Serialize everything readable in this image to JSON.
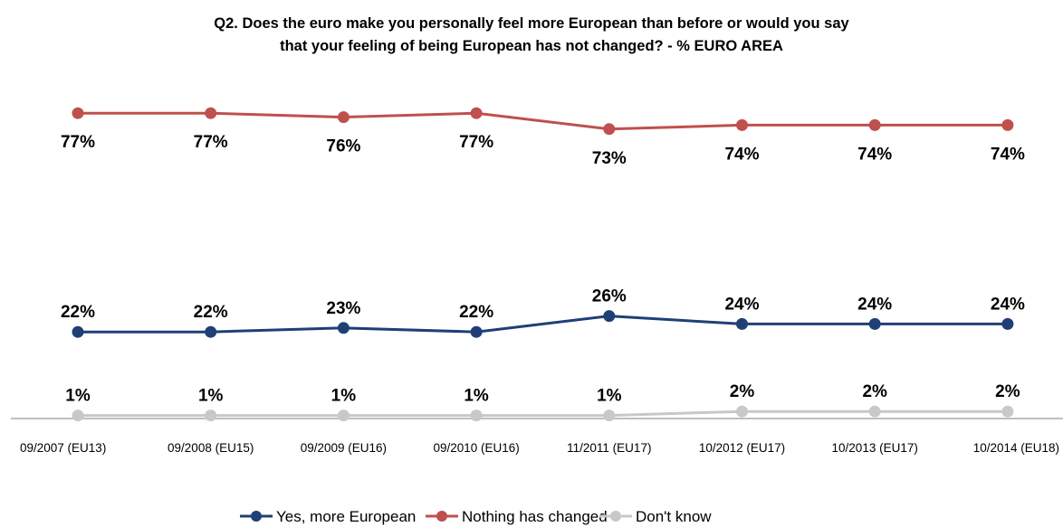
{
  "chart_data": {
    "type": "line",
    "title_lines": [
      "Q2. Does the euro make you personally feel more European than before or would you say",
      "that your feeling of being European has not changed? - % EURO AREA"
    ],
    "categories": [
      "09/2007 (EU13)",
      "09/2008 (EU15)",
      "09/2009 (EU16)",
      "09/2010 (EU16)",
      "11/2011 (EU17)",
      "10/2012 (EU17)",
      "10/2013 (EU17)",
      "10/2014 (EU18)"
    ],
    "series": [
      {
        "name": "Yes, more European",
        "color": "#1F3F77",
        "values": [
          22,
          22,
          23,
          22,
          26,
          24,
          24,
          24
        ],
        "labels": [
          "22%",
          "22%",
          "23%",
          "22%",
          "26%",
          "24%",
          "24%",
          "24%"
        ],
        "label_position": "above"
      },
      {
        "name": "Nothing has changed",
        "color": "#C0504D",
        "values": [
          77,
          77,
          76,
          77,
          73,
          74,
          74,
          74
        ],
        "labels": [
          "77%",
          "77%",
          "76%",
          "77%",
          "73%",
          "74%",
          "74%",
          "74%"
        ],
        "label_position": "below"
      },
      {
        "name": "Don't know",
        "color": "#C8C8C8",
        "values": [
          1,
          1,
          1,
          1,
          1,
          2,
          2,
          2
        ],
        "labels": [
          "1%",
          "1%",
          "1%",
          "1%",
          "1%",
          "2%",
          "2%",
          "2%"
        ],
        "label_position": "above"
      }
    ],
    "ylim": [
      0,
      85
    ],
    "grid": false,
    "legend_position": "bottom-center"
  }
}
